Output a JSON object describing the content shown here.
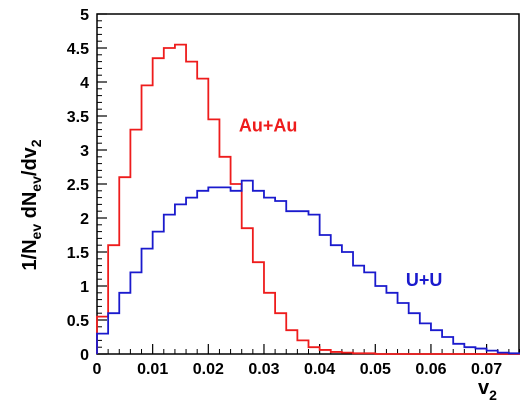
{
  "chart_data": {
    "type": "line",
    "step": true,
    "title": "",
    "xlabel": {
      "main": "v",
      "sub": "2"
    },
    "ylabel": {
      "parts": [
        "1/N",
        "ev",
        " dN",
        "ev",
        "/dv",
        "2"
      ]
    },
    "xlim": [
      0,
      0.076
    ],
    "ylim": [
      0,
      5
    ],
    "xticks": [
      0,
      0.01,
      0.02,
      0.03,
      0.04,
      0.05,
      0.06,
      0.07
    ],
    "xtick_labels": [
      "0",
      "0.01",
      "0.02",
      "0.03",
      "0.04",
      "0.05",
      "0.06",
      "0.07"
    ],
    "yticks": [
      0,
      0.5,
      1,
      1.5,
      2,
      2.5,
      3,
      3.5,
      4,
      4.5,
      5
    ],
    "ytick_labels": [
      "0",
      "0.5",
      "1",
      "1.5",
      "2",
      "2.5",
      "3",
      "3.5",
      "4",
      "4.5",
      "5"
    ],
    "grid": false,
    "legend": "none",
    "bin_edges": [
      0,
      0.002,
      0.004,
      0.006,
      0.008,
      0.01,
      0.012,
      0.014,
      0.016,
      0.018,
      0.02,
      0.022,
      0.024,
      0.026,
      0.028,
      0.03,
      0.032,
      0.034,
      0.036,
      0.038,
      0.04,
      0.042,
      0.044,
      0.046,
      0.048,
      0.05,
      0.052,
      0.054,
      0.056,
      0.058,
      0.06,
      0.062,
      0.064,
      0.066,
      0.068,
      0.07,
      0.072,
      0.074,
      0.076
    ],
    "series": [
      {
        "name": "Au+Au",
        "color": "#ee1c1c",
        "values": [
          0.55,
          1.6,
          2.6,
          3.3,
          3.95,
          4.35,
          4.5,
          4.55,
          4.3,
          4.05,
          3.45,
          2.9,
          2.5,
          1.85,
          1.35,
          0.9,
          0.6,
          0.35,
          0.2,
          0.1,
          0.06,
          0.03,
          0.02,
          0.01,
          0.01,
          0,
          0,
          0,
          0,
          0,
          0,
          0,
          0,
          0,
          0,
          0,
          0,
          0
        ]
      },
      {
        "name": "U+U",
        "color": "#1a1acd",
        "values": [
          0.3,
          0.6,
          0.9,
          1.2,
          1.55,
          1.8,
          2.05,
          2.2,
          2.3,
          2.4,
          2.45,
          2.45,
          2.4,
          2.55,
          2.4,
          2.3,
          2.25,
          2.1,
          2.1,
          2.05,
          1.75,
          1.6,
          1.5,
          1.3,
          1.2,
          1.0,
          0.9,
          0.75,
          0.6,
          0.45,
          0.35,
          0.25,
          0.15,
          0.1,
          0.08,
          0.05,
          0.02,
          0.01
        ]
      }
    ],
    "annotations": [
      {
        "text": "Au+Au",
        "color": "#ee1c1c",
        "x": 0.0255,
        "y": 3.27
      },
      {
        "text": "U+U",
        "color": "#1a1acd",
        "x": 0.0555,
        "y": 1.0
      }
    ]
  }
}
